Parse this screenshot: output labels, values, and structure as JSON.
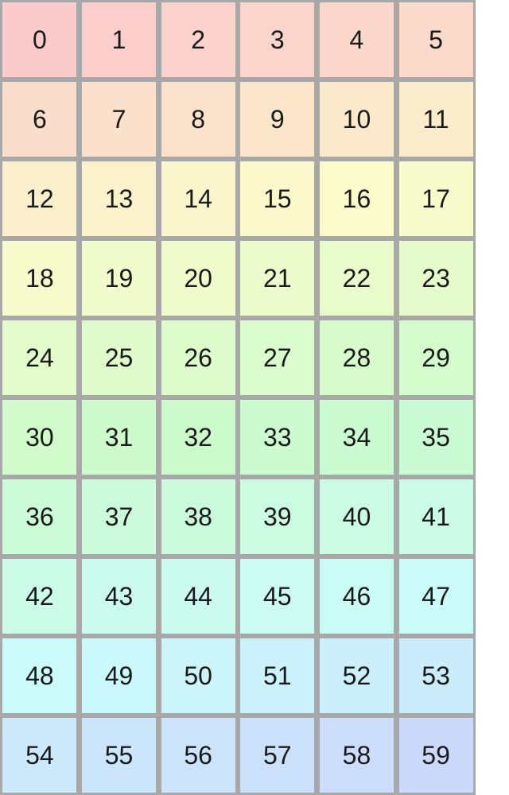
{
  "page": {
    "background_color": "#ffffff"
  },
  "grid": {
    "columns": 6,
    "rows": 10,
    "border_color": "#a8a8a8",
    "text_color": "#1a1a1a",
    "cells": [
      {
        "label": "0",
        "color": "hsl(0, 85%, 89%)"
      },
      {
        "label": "1",
        "color": "hsl(3.75, 85%, 89%)"
      },
      {
        "label": "2",
        "color": "hsl(7.5, 85%, 89%)"
      },
      {
        "label": "3",
        "color": "hsl(11.25, 85%, 89%)"
      },
      {
        "label": "4",
        "color": "hsl(15, 85%, 89%)"
      },
      {
        "label": "5",
        "color": "hsl(18.75, 85%, 89%)"
      },
      {
        "label": "6",
        "color": "hsl(22.5, 85%, 89%)"
      },
      {
        "label": "7",
        "color": "hsl(26.25, 85%, 89%)"
      },
      {
        "label": "8",
        "color": "hsl(30, 85%, 89%)"
      },
      {
        "label": "9",
        "color": "hsl(33.75, 85%, 89%)"
      },
      {
        "label": "10",
        "color": "hsl(37.5, 85%, 89%)"
      },
      {
        "label": "11",
        "color": "hsl(41.25, 85%, 89%)"
      },
      {
        "label": "12",
        "color": "hsl(45, 85%, 89%)"
      },
      {
        "label": "13",
        "color": "hsl(48.75, 85%, 89%)"
      },
      {
        "label": "14",
        "color": "hsl(52.5, 85%, 89%)"
      },
      {
        "label": "15",
        "color": "hsl(56.25, 85%, 89%)"
      },
      {
        "label": "16",
        "color": "hsl(60, 85%, 89%)"
      },
      {
        "label": "17",
        "color": "hsl(63.75, 85%, 89%)"
      },
      {
        "label": "18",
        "color": "hsl(67.5, 85%, 89%)"
      },
      {
        "label": "19",
        "color": "hsl(71.25, 85%, 89%)"
      },
      {
        "label": "20",
        "color": "hsl(75, 85%, 89%)"
      },
      {
        "label": "21",
        "color": "hsl(78.75, 85%, 89%)"
      },
      {
        "label": "22",
        "color": "hsl(82.5, 85%, 89%)"
      },
      {
        "label": "23",
        "color": "hsl(86.25, 85%, 89%)"
      },
      {
        "label": "24",
        "color": "hsl(90, 85%, 89%)"
      },
      {
        "label": "25",
        "color": "hsl(93.75, 85%, 89%)"
      },
      {
        "label": "26",
        "color": "hsl(97.5, 85%, 89%)"
      },
      {
        "label": "27",
        "color": "hsl(101.25, 85%, 89%)"
      },
      {
        "label": "28",
        "color": "hsl(105, 85%, 89%)"
      },
      {
        "label": "29",
        "color": "hsl(108.75, 85%, 89%)"
      },
      {
        "label": "30",
        "color": "hsl(112.5, 85%, 89%)"
      },
      {
        "label": "31",
        "color": "hsl(116.25, 85%, 89%)"
      },
      {
        "label": "32",
        "color": "hsl(120, 85%, 89%)"
      },
      {
        "label": "33",
        "color": "hsl(123.75, 85%, 89%)"
      },
      {
        "label": "34",
        "color": "hsl(127.5, 85%, 89%)"
      },
      {
        "label": "35",
        "color": "hsl(131.25, 85%, 89%)"
      },
      {
        "label": "36",
        "color": "hsl(135, 85%, 89%)"
      },
      {
        "label": "37",
        "color": "hsl(138.75, 85%, 89%)"
      },
      {
        "label": "38",
        "color": "hsl(142.5, 85%, 89%)"
      },
      {
        "label": "39",
        "color": "hsl(146.25, 85%, 89%)"
      },
      {
        "label": "40",
        "color": "hsl(150, 85%, 89%)"
      },
      {
        "label": "41",
        "color": "hsl(153.75, 85%, 89%)"
      },
      {
        "label": "42",
        "color": "hsl(157.5, 85%, 89%)"
      },
      {
        "label": "43",
        "color": "hsl(161.25, 85%, 89%)"
      },
      {
        "label": "44",
        "color": "hsl(165, 85%, 89%)"
      },
      {
        "label": "45",
        "color": "hsl(168.75, 85%, 89%)"
      },
      {
        "label": "46",
        "color": "hsl(172.5, 85%, 89%)"
      },
      {
        "label": "47",
        "color": "hsl(176.25, 85%, 89%)"
      },
      {
        "label": "48",
        "color": "hsl(180, 85%, 89%)"
      },
      {
        "label": "49",
        "color": "hsl(183.75, 85%, 89%)"
      },
      {
        "label": "50",
        "color": "hsl(187.5, 85%, 89%)"
      },
      {
        "label": "51",
        "color": "hsl(191.25, 85%, 89%)"
      },
      {
        "label": "52",
        "color": "hsl(195, 85%, 89%)"
      },
      {
        "label": "53",
        "color": "hsl(198.75, 85%, 89%)"
      },
      {
        "label": "54",
        "color": "hsl(202.5, 85%, 89%)"
      },
      {
        "label": "55",
        "color": "hsl(206.25, 85%, 89%)"
      },
      {
        "label": "56",
        "color": "hsl(210, 85%, 89%)"
      },
      {
        "label": "57",
        "color": "hsl(213.75, 85%, 89%)"
      },
      {
        "label": "58",
        "color": "hsl(217.5, 85%, 89%)"
      },
      {
        "label": "59",
        "color": "hsl(221.25, 85%, 89%)"
      }
    ]
  }
}
